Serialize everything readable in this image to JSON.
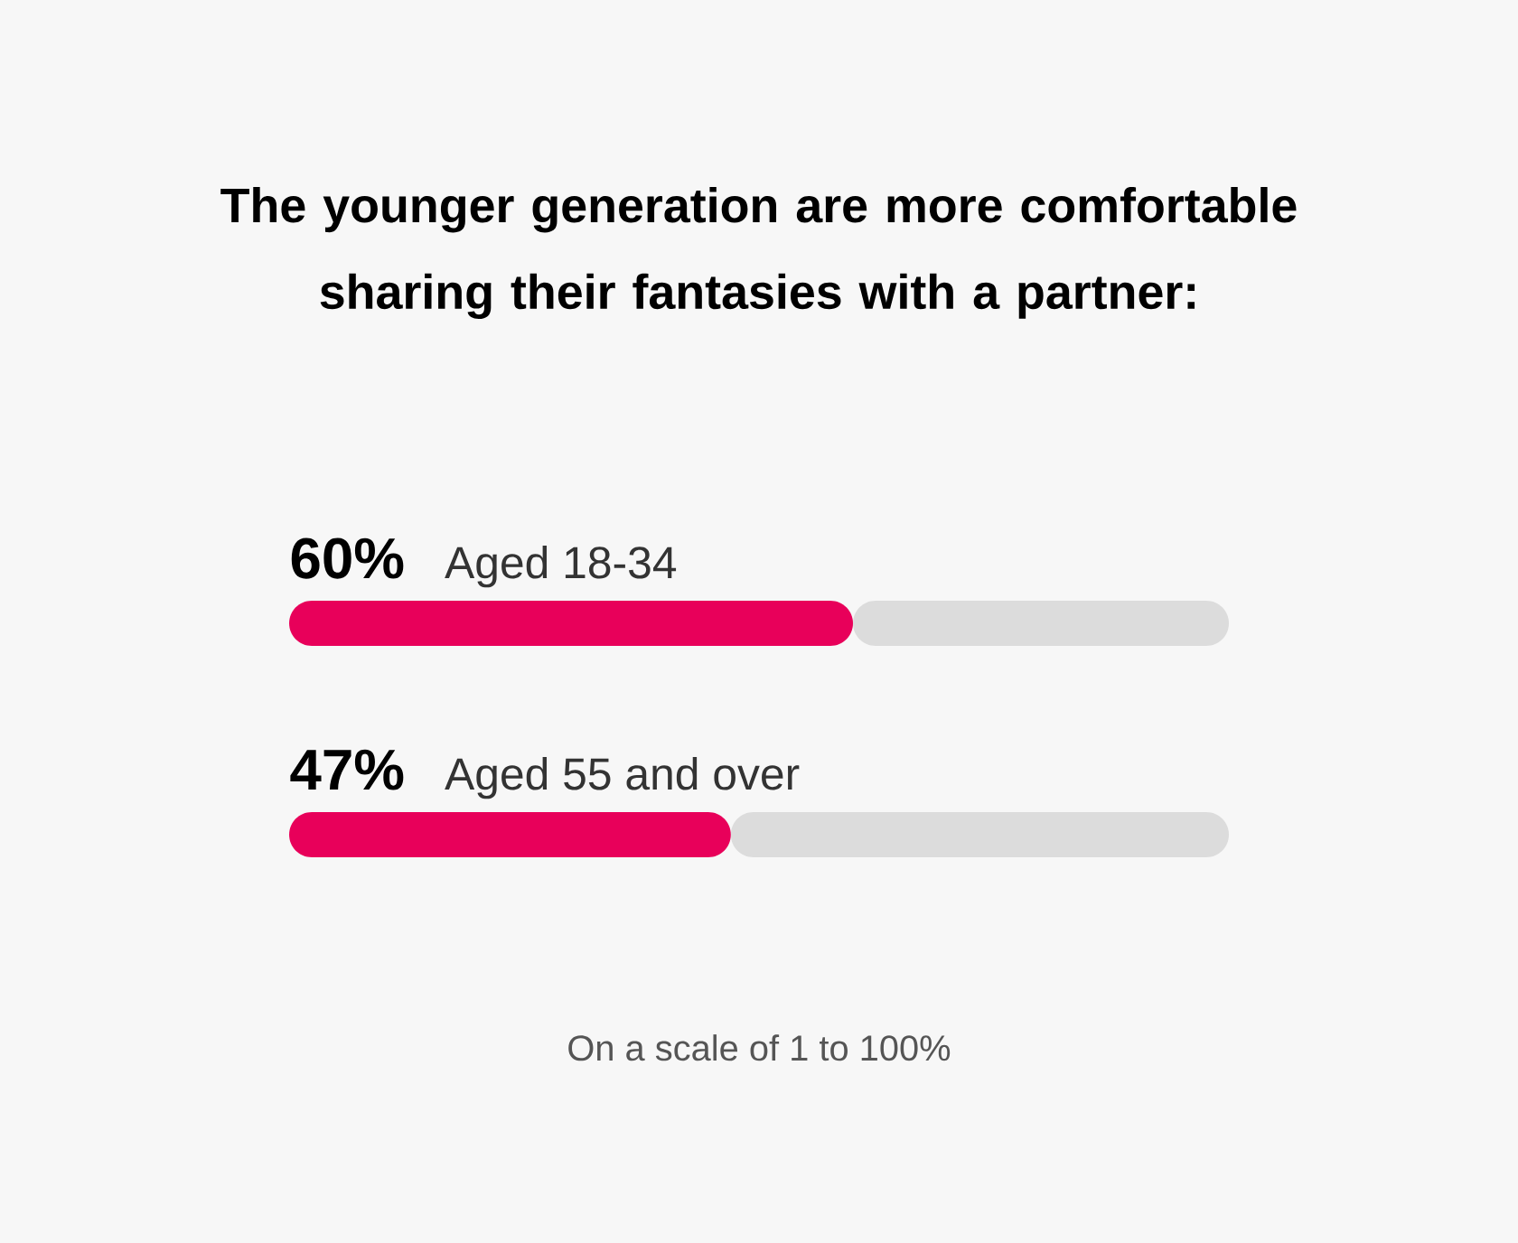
{
  "chart_data": {
    "type": "bar",
    "orientation": "horizontal",
    "stacked": true,
    "title": "The younger generation are more comfortable sharing their fantasies with a partner:",
    "categories": [
      "Aged 18-34",
      "Aged 55 and over"
    ],
    "series": [
      {
        "color": "#e8005a",
        "values": [
          60,
          47
        ],
        "value_labels": [
          "60%",
          "47%"
        ]
      },
      {
        "color": "#dcdcdc",
        "values": [
          40,
          53
        ]
      }
    ],
    "xlim": [
      0,
      100
    ],
    "annotations": [
      "On a scale of 1 to 100%"
    ]
  }
}
